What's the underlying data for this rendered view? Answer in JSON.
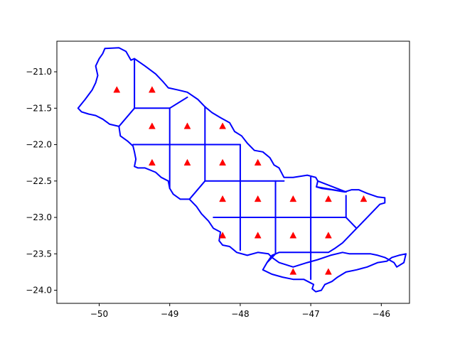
{
  "chart_data": {
    "type": "scatter",
    "title": "",
    "xlabel": "",
    "ylabel": "",
    "xlim": [
      -50.6,
      -45.6
    ],
    "ylim": [
      -24.18,
      -20.58
    ],
    "grid": false,
    "xticks": [
      {
        "value": -50,
        "label": "−50"
      },
      {
        "value": -49,
        "label": "−49"
      },
      {
        "value": -48,
        "label": "−48"
      },
      {
        "value": -47,
        "label": "−47"
      },
      {
        "value": -46,
        "label": "−46"
      }
    ],
    "yticks": [
      {
        "value": -21.0,
        "label": "−21.0"
      },
      {
        "value": -21.5,
        "label": "−21.5"
      },
      {
        "value": -22.0,
        "label": "−22.0"
      },
      {
        "value": -22.5,
        "label": "−22.5"
      },
      {
        "value": -23.0,
        "label": "−23.0"
      },
      {
        "value": -23.5,
        "label": "−23.5"
      },
      {
        "value": -24.0,
        "label": "−24.0"
      }
    ],
    "colors": {
      "boundary": "#0000ff",
      "points": "#ff0000",
      "axes": "#000000"
    },
    "point_marker": "triangle",
    "points": [
      {
        "x": -49.75,
        "y": -21.25
      },
      {
        "x": -49.25,
        "y": -21.25
      },
      {
        "x": -49.25,
        "y": -21.75
      },
      {
        "x": -48.75,
        "y": -21.75
      },
      {
        "x": -48.25,
        "y": -21.75
      },
      {
        "x": -49.25,
        "y": -22.25
      },
      {
        "x": -48.75,
        "y": -22.25
      },
      {
        "x": -48.25,
        "y": -22.25
      },
      {
        "x": -47.75,
        "y": -22.25
      },
      {
        "x": -48.25,
        "y": -22.75
      },
      {
        "x": -47.75,
        "y": -22.75
      },
      {
        "x": -47.25,
        "y": -22.75
      },
      {
        "x": -46.75,
        "y": -22.75
      },
      {
        "x": -46.25,
        "y": -22.75
      },
      {
        "x": -48.25,
        "y": -23.25
      },
      {
        "x": -47.75,
        "y": -23.25
      },
      {
        "x": -47.25,
        "y": -23.25
      },
      {
        "x": -46.75,
        "y": -23.25
      },
      {
        "x": -47.25,
        "y": -23.75
      },
      {
        "x": -46.75,
        "y": -23.75
      }
    ],
    "boundary": [
      [
        -49.92,
        -20.68
      ],
      [
        -49.72,
        -20.67
      ],
      [
        -49.62,
        -20.72
      ],
      [
        -49.55,
        -20.84
      ],
      [
        -49.5,
        -20.82
      ],
      [
        -49.35,
        -20.92
      ],
      [
        -49.2,
        -21.03
      ],
      [
        -49.1,
        -21.13
      ],
      [
        -49.02,
        -21.22
      ],
      [
        -48.88,
        -21.25
      ],
      [
        -48.75,
        -21.28
      ],
      [
        -48.6,
        -21.38
      ],
      [
        -48.5,
        -21.48
      ],
      [
        -48.4,
        -21.56
      ],
      [
        -48.28,
        -21.63
      ],
      [
        -48.15,
        -21.7
      ],
      [
        -48.08,
        -21.82
      ],
      [
        -47.98,
        -21.88
      ],
      [
        -47.9,
        -21.98
      ],
      [
        -47.8,
        -22.08
      ],
      [
        -47.68,
        -22.1
      ],
      [
        -47.58,
        -22.18
      ],
      [
        -47.52,
        -22.28
      ],
      [
        -47.45,
        -22.32
      ],
      [
        -47.38,
        -22.45
      ],
      [
        -47.25,
        -22.45
      ],
      [
        -47.05,
        -22.42
      ],
      [
        -46.93,
        -22.45
      ],
      [
        -46.9,
        -22.5
      ],
      [
        -46.92,
        -22.58
      ],
      [
        -46.85,
        -22.6
      ],
      [
        -46.7,
        -22.62
      ],
      [
        -46.52,
        -22.65
      ],
      [
        -46.42,
        -22.62
      ],
      [
        -46.32,
        -22.62
      ],
      [
        -46.2,
        -22.67
      ],
      [
        -46.05,
        -22.72
      ],
      [
        -45.95,
        -22.73
      ],
      [
        -45.95,
        -22.8
      ],
      [
        -46.02,
        -22.82
      ],
      [
        -46.2,
        -23.0
      ],
      [
        -46.35,
        -23.15
      ],
      [
        -46.45,
        -23.25
      ],
      [
        -46.55,
        -23.35
      ],
      [
        -46.65,
        -23.42
      ],
      [
        -46.75,
        -23.48
      ],
      [
        -46.95,
        -23.48
      ],
      [
        -47.15,
        -23.48
      ],
      [
        -47.35,
        -23.48
      ],
      [
        -47.45,
        -23.48
      ],
      [
        -47.55,
        -23.52
      ],
      [
        -47.62,
        -23.62
      ],
      [
        -47.68,
        -23.72
      ],
      [
        -47.55,
        -23.78
      ],
      [
        -47.4,
        -23.82
      ],
      [
        -47.25,
        -23.85
      ],
      [
        -47.1,
        -23.85
      ],
      [
        -47.0,
        -23.9
      ],
      [
        -46.96,
        -23.92
      ],
      [
        -46.98,
        -23.98
      ],
      [
        -46.93,
        -24.02
      ],
      [
        -46.85,
        -24.0
      ],
      [
        -46.8,
        -23.92
      ],
      [
        -46.7,
        -23.88
      ],
      [
        -46.62,
        -23.82
      ],
      [
        -46.5,
        -23.75
      ],
      [
        -46.35,
        -23.72
      ],
      [
        -46.2,
        -23.68
      ],
      [
        -46.05,
        -23.62
      ],
      [
        -45.92,
        -23.6
      ],
      [
        -45.85,
        -23.55
      ],
      [
        -45.75,
        -23.52
      ],
      [
        -45.65,
        -23.5
      ],
      [
        -45.68,
        -23.62
      ],
      [
        -45.78,
        -23.68
      ],
      [
        -45.82,
        -23.62
      ],
      [
        -45.95,
        -23.55
      ],
      [
        -46.05,
        -23.52
      ],
      [
        -46.15,
        -23.5
      ],
      [
        -46.25,
        -23.5
      ],
      [
        -46.45,
        -23.5
      ],
      [
        -46.55,
        -23.48
      ],
      [
        -46.72,
        -23.52
      ],
      [
        -46.9,
        -23.58
      ],
      [
        -47.05,
        -23.62
      ],
      [
        -47.25,
        -23.68
      ],
      [
        -47.45,
        -23.62
      ],
      [
        -47.55,
        -23.55
      ],
      [
        -47.6,
        -23.5
      ],
      [
        -47.75,
        -23.48
      ],
      [
        -47.9,
        -23.52
      ],
      [
        -48.05,
        -23.48
      ],
      [
        -48.15,
        -23.4
      ],
      [
        -48.25,
        -23.38
      ],
      [
        -48.3,
        -23.32
      ],
      [
        -48.28,
        -23.2
      ],
      [
        -48.38,
        -23.15
      ],
      [
        -48.45,
        -23.05
      ],
      [
        -48.55,
        -22.95
      ],
      [
        -48.62,
        -22.85
      ],
      [
        -48.72,
        -22.75
      ],
      [
        -48.85,
        -22.75
      ],
      [
        -48.95,
        -22.68
      ],
      [
        -49.0,
        -22.6
      ],
      [
        -49.02,
        -22.5
      ],
      [
        -49.12,
        -22.45
      ],
      [
        -49.2,
        -22.38
      ],
      [
        -49.35,
        -22.32
      ],
      [
        -49.45,
        -22.32
      ],
      [
        -49.5,
        -22.3
      ],
      [
        -49.48,
        -22.2
      ],
      [
        -49.5,
        -22.1
      ],
      [
        -49.52,
        -22.02
      ],
      [
        -49.6,
        -21.95
      ],
      [
        -49.7,
        -21.88
      ],
      [
        -49.72,
        -21.75
      ],
      [
        -49.85,
        -21.72
      ],
      [
        -49.95,
        -21.65
      ],
      [
        -50.05,
        -21.6
      ],
      [
        -50.15,
        -21.58
      ],
      [
        -50.25,
        -21.55
      ],
      [
        -50.3,
        -21.5
      ],
      [
        -50.2,
        -21.38
      ],
      [
        -50.1,
        -21.25
      ],
      [
        -50.05,
        -21.15
      ],
      [
        -50.02,
        -21.05
      ],
      [
        -50.05,
        -20.92
      ],
      [
        -50.0,
        -20.82
      ],
      [
        -49.95,
        -20.75
      ],
      [
        -49.92,
        -20.68
      ]
    ],
    "grid_lines": [
      [
        [
          -49.5,
          -20.82
        ],
        [
          -49.5,
          -21.5
        ]
      ],
      [
        [
          -49.5,
          -21.5
        ],
        [
          -49.72,
          -21.75
        ]
      ],
      [
        [
          -49.5,
          -21.5
        ],
        [
          -49.0,
          -21.5
        ]
      ],
      [
        [
          -49.0,
          -21.5
        ],
        [
          -49.0,
          -22.6
        ]
      ],
      [
        [
          -49.0,
          -21.5
        ],
        [
          -48.75,
          -21.35
        ]
      ],
      [
        [
          -48.5,
          -21.48
        ],
        [
          -48.5,
          -22.5
        ]
      ],
      [
        [
          -49.52,
          -22.0
        ],
        [
          -48.0,
          -22.0
        ]
      ],
      [
        [
          -48.0,
          -22.0
        ],
        [
          -48.0,
          -23.45
        ]
      ],
      [
        [
          -48.5,
          -22.5
        ],
        [
          -47.38,
          -22.5
        ]
      ],
      [
        [
          -48.5,
          -22.5
        ],
        [
          -48.72,
          -22.75
        ]
      ],
      [
        [
          -47.5,
          -22.5
        ],
        [
          -47.5,
          -23.5
        ]
      ],
      [
        [
          -47.0,
          -22.45
        ],
        [
          -47.0,
          -23.85
        ]
      ],
      [
        [
          -46.9,
          -22.5
        ],
        [
          -46.5,
          -22.65
        ]
      ],
      [
        [
          -46.92,
          -22.58
        ],
        [
          -46.5,
          -22.65
        ]
      ],
      [
        [
          -46.5,
          -22.7
        ],
        [
          -46.5,
          -23.0
        ]
      ],
      [
        [
          -48.38,
          -23.0
        ],
        [
          -46.5,
          -23.0
        ]
      ],
      [
        [
          -46.5,
          -23.0
        ],
        [
          -46.35,
          -23.15
        ]
      ],
      [
        [
          -47.5,
          -23.5
        ],
        [
          -47.62,
          -23.62
        ]
      ]
    ]
  }
}
